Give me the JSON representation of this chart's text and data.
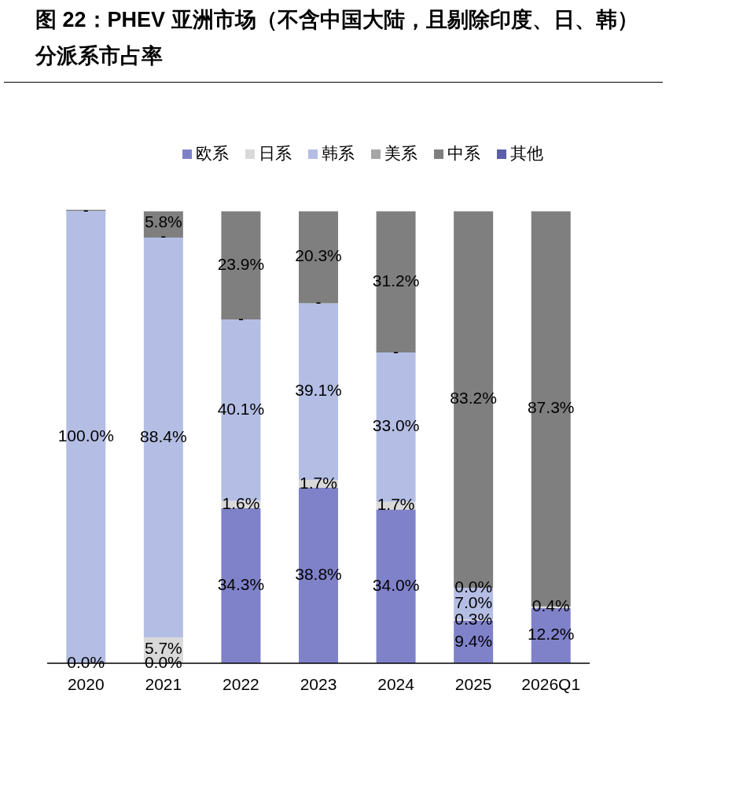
{
  "chart_data": {
    "type": "bar",
    "title": "图 22：PHEV 亚洲市场（不含中国大陆，且剔除印度、日、韩）分派系市占率",
    "stacked": true,
    "legend": "top",
    "ylim": [
      0,
      100
    ],
    "tick_labels": "x",
    "categories": [
      "2020",
      "2021",
      "2022",
      "2023",
      "2024",
      "2025",
      "2026Q1"
    ],
    "series": [
      {
        "name": "欧系",
        "color": "#7f82c9",
        "values": [
          0,
          0,
          34.3,
          38.8,
          34.0,
          9.4,
          12.2
        ],
        "value_labels": [
          "0.0%",
          "0.0%",
          "34.3%",
          "38.8%",
          "34.0%",
          "9.4%",
          "12.2%"
        ]
      },
      {
        "name": "日系",
        "color": "#d9d9d9",
        "values": [
          0,
          5.7,
          1.6,
          1.7,
          1.7,
          0.3,
          0.4
        ],
        "value_labels": [
          null,
          "5.7%",
          "1.6%",
          "1.7%",
          "1.7%",
          "0.3%",
          "0.4%"
        ]
      },
      {
        "name": "韩系",
        "color": "#b4bee4",
        "values": [
          100.0,
          88.4,
          40.1,
          39.1,
          33.0,
          7.0,
          0
        ],
        "value_labels": [
          "100.0%",
          "88.4%",
          "40.1%",
          "39.1%",
          "33.0%",
          "7.0%",
          null
        ]
      },
      {
        "name": "美系",
        "color": "#a6a6a6",
        "values": [
          0,
          0,
          0,
          0,
          0,
          0.0,
          null
        ],
        "value_labels": [
          "-",
          "-",
          "-",
          "-",
          "-",
          "0.0%",
          null
        ]
      },
      {
        "name": "中系",
        "color": "#7f7f7f",
        "values": [
          0,
          5.8,
          23.9,
          20.3,
          31.2,
          83.2,
          87.3
        ],
        "value_labels": [
          null,
          "5.8%",
          "23.9%",
          "20.3%",
          "31.2%",
          "83.2%",
          "87.3%"
        ]
      },
      {
        "name": "其他",
        "color": "#5a5fa8",
        "values": [
          null,
          null,
          null,
          null,
          null,
          null,
          null
        ]
      }
    ]
  }
}
